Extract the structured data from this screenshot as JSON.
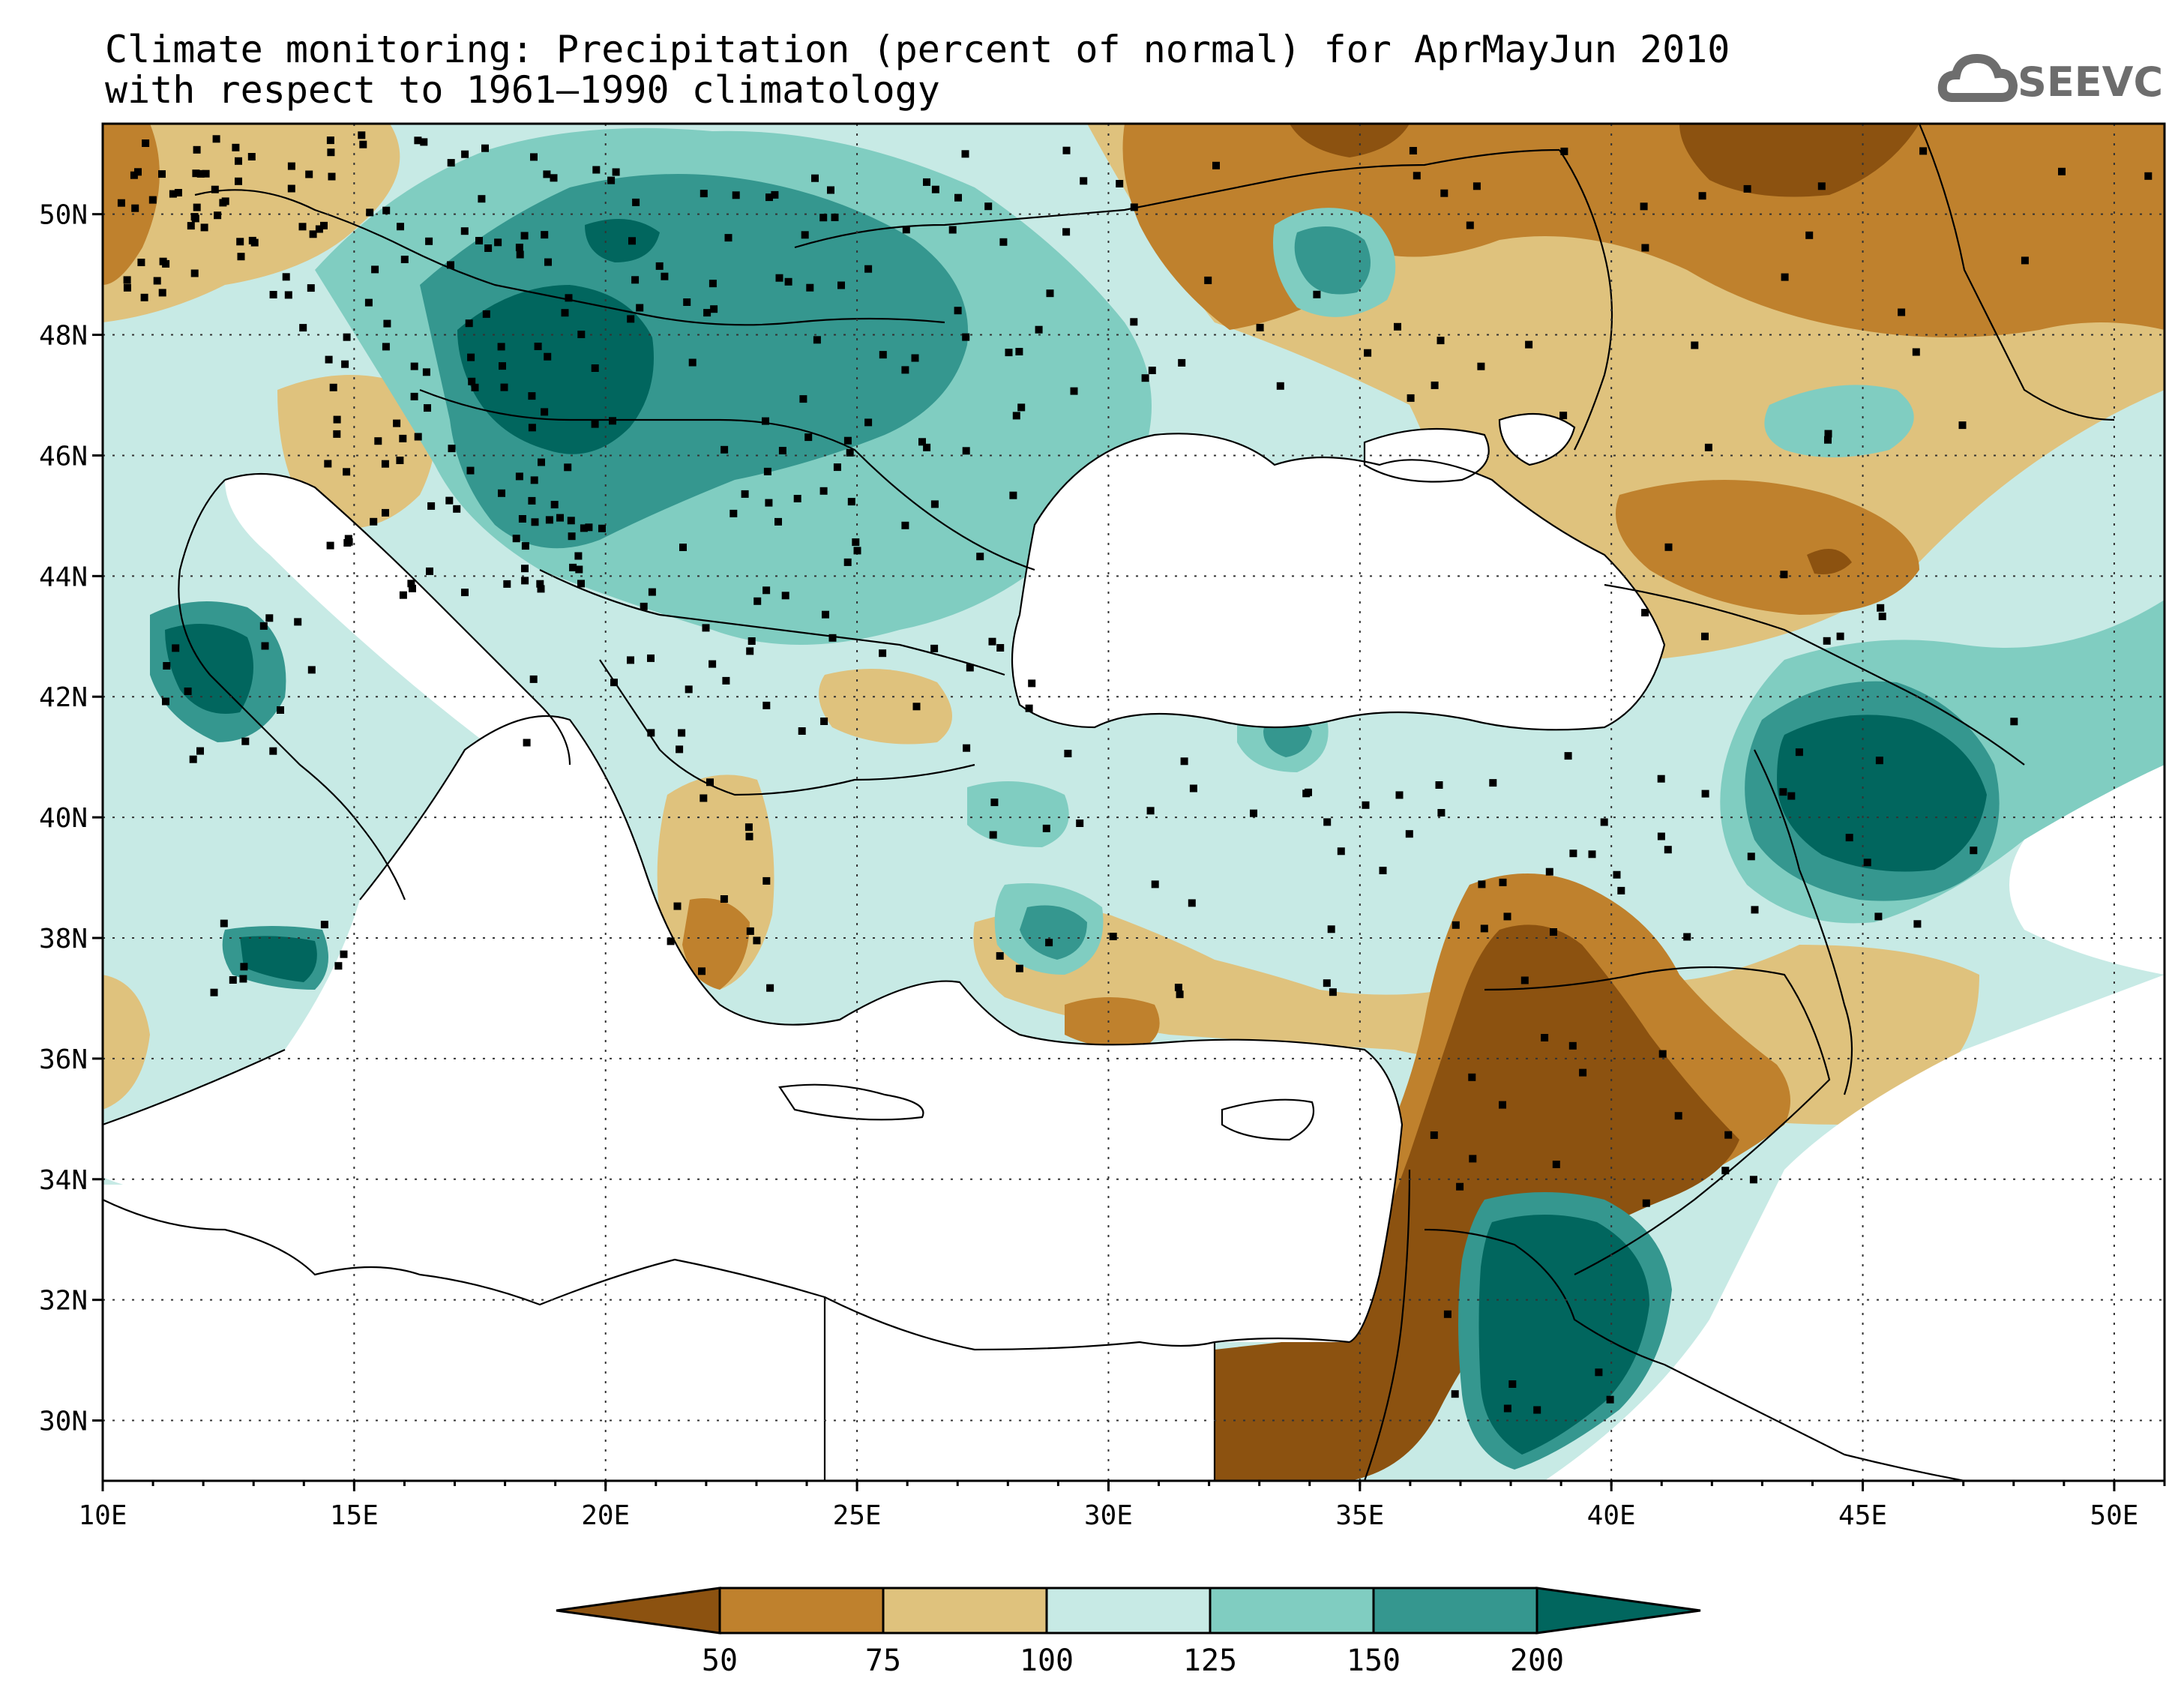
{
  "title": {
    "line1": "Climate monitoring: Precipitation (percent of normal) for AprMayJun 2010",
    "line2": "with respect to 1961–1990 climatology"
  },
  "logo": {
    "text": "SEEVCCC",
    "icon": "cloud-icon"
  },
  "map": {
    "lon_range": [
      10,
      51
    ],
    "lat_range": [
      29,
      51.5
    ],
    "lon_ticks": [
      {
        "value": 10,
        "label": "10E"
      },
      {
        "value": 15,
        "label": "15E"
      },
      {
        "value": 20,
        "label": "20E"
      },
      {
        "value": 25,
        "label": "25E"
      },
      {
        "value": 30,
        "label": "30E"
      },
      {
        "value": 35,
        "label": "35E"
      },
      {
        "value": 40,
        "label": "40E"
      },
      {
        "value": 45,
        "label": "45E"
      },
      {
        "value": 50,
        "label": "50E"
      }
    ],
    "lat_ticks": [
      {
        "value": 30,
        "label": "30N"
      },
      {
        "value": 32,
        "label": "32N"
      },
      {
        "value": 34,
        "label": "34N"
      },
      {
        "value": 36,
        "label": "36N"
      },
      {
        "value": 38,
        "label": "38N"
      },
      {
        "value": 40,
        "label": "40N"
      },
      {
        "value": 42,
        "label": "42N"
      },
      {
        "value": 44,
        "label": "44N"
      },
      {
        "value": 46,
        "label": "46N"
      },
      {
        "value": 48,
        "label": "48N"
      },
      {
        "value": 50,
        "label": "50N"
      }
    ],
    "grid": "dotted"
  },
  "colors": {
    "c_lt50": "#8c5210",
    "c_50_75": "#bf812d",
    "c_75_100": "#dfc27d",
    "c_100_125": "#c7eae5",
    "c_125_150": "#80cdc1",
    "c_150_200": "#35978f",
    "c_gt200": "#01665e"
  },
  "legend": {
    "labels": [
      "50",
      "75",
      "100",
      "125",
      "150",
      "200"
    ]
  }
}
